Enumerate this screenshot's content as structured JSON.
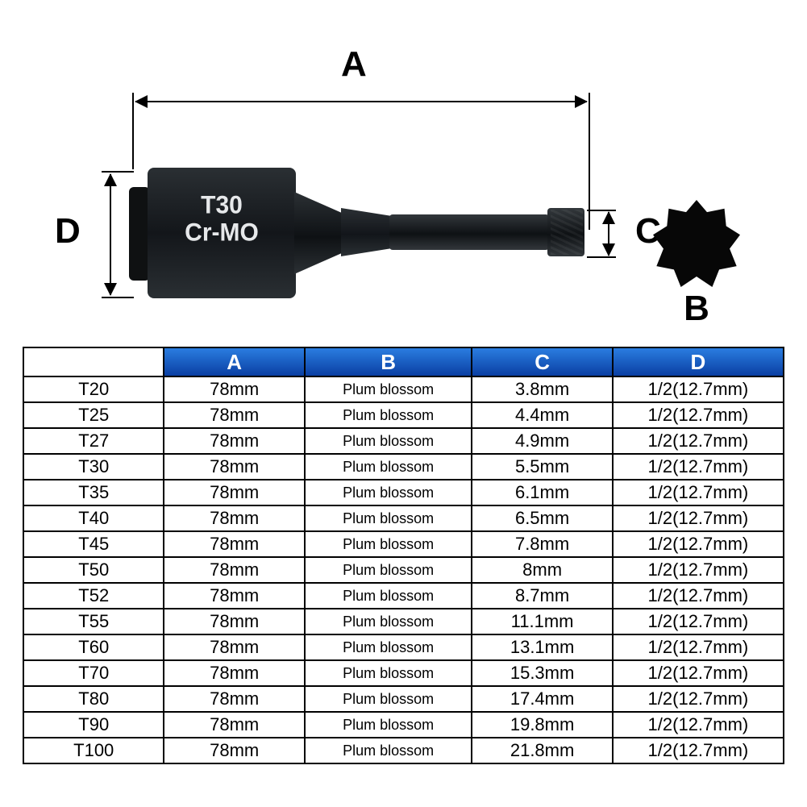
{
  "diagram": {
    "labels": {
      "A": "A",
      "B": "B",
      "C": "C",
      "D": "D"
    },
    "stamp_line1": "T30",
    "stamp_line2": "Cr-MO"
  },
  "table": {
    "header_bg_gradient": [
      "#2a7de0",
      "#0a3fa3"
    ],
    "header_text_color": "#ffffff",
    "border_color": "#000000",
    "columns": [
      "",
      "A",
      "B",
      "C",
      "D"
    ],
    "rows": [
      {
        "model": "T20",
        "A": "78mm",
        "B": "Plum blossom",
        "C": "3.8mm",
        "D": "1/2(12.7mm)"
      },
      {
        "model": "T25",
        "A": "78mm",
        "B": "Plum blossom",
        "C": "4.4mm",
        "D": "1/2(12.7mm)"
      },
      {
        "model": "T27",
        "A": "78mm",
        "B": "Plum blossom",
        "C": "4.9mm",
        "D": "1/2(12.7mm)"
      },
      {
        "model": "T30",
        "A": "78mm",
        "B": "Plum blossom",
        "C": "5.5mm",
        "D": "1/2(12.7mm)"
      },
      {
        "model": "T35",
        "A": "78mm",
        "B": "Plum blossom",
        "C": "6.1mm",
        "D": "1/2(12.7mm)"
      },
      {
        "model": "T40",
        "A": "78mm",
        "B": "Plum blossom",
        "C": "6.5mm",
        "D": "1/2(12.7mm)"
      },
      {
        "model": "T45",
        "A": "78mm",
        "B": "Plum blossom",
        "C": "7.8mm",
        "D": "1/2(12.7mm)"
      },
      {
        "model": "T50",
        "A": "78mm",
        "B": "Plum blossom",
        "C": "8mm",
        "D": "1/2(12.7mm)"
      },
      {
        "model": "T52",
        "A": "78mm",
        "B": "Plum blossom",
        "C": "8.7mm",
        "D": "1/2(12.7mm)"
      },
      {
        "model": "T55",
        "A": "78mm",
        "B": "Plum blossom",
        "C": "11.1mm",
        "D": "1/2(12.7mm)"
      },
      {
        "model": "T60",
        "A": "78mm",
        "B": "Plum blossom",
        "C": "13.1mm",
        "D": "1/2(12.7mm)"
      },
      {
        "model": "T70",
        "A": "78mm",
        "B": "Plum blossom",
        "C": "15.3mm",
        "D": "1/2(12.7mm)"
      },
      {
        "model": "T80",
        "A": "78mm",
        "B": "Plum blossom",
        "C": "17.4mm",
        "D": "1/2(12.7mm)"
      },
      {
        "model": "T90",
        "A": "78mm",
        "B": "Plum blossom",
        "C": "19.8mm",
        "D": "1/2(12.7mm)"
      },
      {
        "model": "T100",
        "A": "78mm",
        "B": "Plum blossom",
        "C": "21.8mm",
        "D": "1/2(12.7mm)"
      }
    ]
  }
}
